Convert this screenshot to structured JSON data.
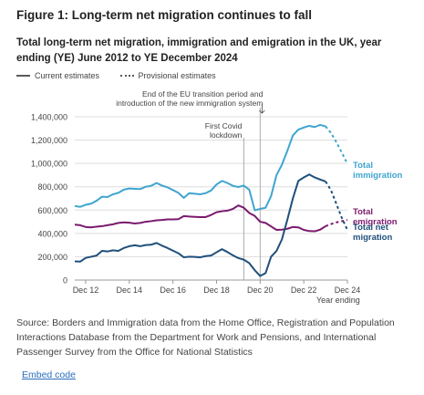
{
  "figure_title": "Figure 1: Long-term net migration continues to fall",
  "chart_title": "Total long-term net migration, immigration and emigration in the UK, year ending (YE) June 2012 to YE December 2024",
  "legend": {
    "current": "Current estimates",
    "provisional": "Provisional estimates"
  },
  "source": "Source: Borders and Immigration data from the Home Office, Registration and Population Interactions Database from the Department for Work and Pensions, and International Passenger Survey from the Office for National Statistics",
  "embed_link": "Embed code",
  "colors": {
    "immigration": "#3fa5d0",
    "emigration": "#7b1a6e",
    "net": "#1f4f7b",
    "grid": "#dddddd",
    "axis": "#999999"
  },
  "chart_data": {
    "type": "line",
    "x_unit": "quarter (year ending)",
    "x": [
      "Jun 12",
      "Sep 12",
      "Dec 12",
      "Mar 13",
      "Jun 13",
      "Sep 13",
      "Dec 13",
      "Mar 14",
      "Jun 14",
      "Sep 14",
      "Dec 14",
      "Mar 15",
      "Jun 15",
      "Sep 15",
      "Dec 15",
      "Mar 16",
      "Jun 16",
      "Sep 16",
      "Dec 16",
      "Mar 17",
      "Jun 17",
      "Sep 17",
      "Dec 17",
      "Mar 18",
      "Jun 18",
      "Sep 18",
      "Dec 18",
      "Mar 19",
      "Jun 19",
      "Sep 19",
      "Dec 19",
      "Mar 20",
      "Jun 20",
      "Sep 20",
      "Dec 20",
      "Mar 21",
      "Jun 21",
      "Sep 21",
      "Dec 21",
      "Mar 22",
      "Jun 22",
      "Sep 22",
      "Dec 22",
      "Mar 23",
      "Jun 23",
      "Sep 23",
      "Dec 23",
      "Mar 24",
      "Jun 24",
      "Sep 24",
      "Dec 24"
    ],
    "xticks": [
      "Dec 12",
      "Dec 14",
      "Dec 16",
      "Dec 18",
      "Dec 20",
      "Dec 22",
      "Dec 24"
    ],
    "x_axis_note": "Year ending",
    "ylim": [
      0,
      1400000
    ],
    "yticks": [
      "0",
      "200,000",
      "400,000",
      "600,000",
      "800,000",
      "1,000,000",
      "1,200,000",
      "1,400,000"
    ],
    "yticks_values": [
      0,
      200000,
      400000,
      600000,
      800000,
      1000000,
      1200000,
      1400000
    ],
    "provisional_from": "Dec 23",
    "series": [
      {
        "name": "Total immigration",
        "key": "immigration",
        "values": [
          635000,
          628000,
          645000,
          655000,
          680000,
          715000,
          712000,
          735000,
          748000,
          775000,
          785000,
          782000,
          780000,
          800000,
          808000,
          832000,
          810000,
          795000,
          772000,
          748000,
          705000,
          745000,
          740000,
          735000,
          745000,
          768000,
          820000,
          850000,
          832000,
          808000,
          798000,
          810000,
          775000,
          598000,
          610000,
          620000,
          720000,
          900000,
          990000,
          1110000,
          1240000,
          1290000,
          1308000,
          1322000,
          1312000,
          1330000,
          1318000,
          1260000,
          1180000,
          1090000,
          995000
        ]
      },
      {
        "name": "Total emigration",
        "key": "emigration",
        "values": [
          475000,
          470000,
          455000,
          452000,
          458000,
          462000,
          470000,
          478000,
          490000,
          495000,
          492000,
          485000,
          490000,
          500000,
          505000,
          512000,
          515000,
          520000,
          520000,
          522000,
          548000,
          545000,
          542000,
          540000,
          540000,
          558000,
          582000,
          590000,
          595000,
          610000,
          640000,
          620000,
          575000,
          550000,
          500000,
          490000,
          460000,
          430000,
          432000,
          440000,
          455000,
          452000,
          430000,
          420000,
          418000,
          432000,
          462000,
          480000,
          495000,
          505000,
          515000
        ]
      },
      {
        "name": "Total net migration",
        "key": "net",
        "values": [
          160000,
          158000,
          190000,
          200000,
          210000,
          250000,
          245000,
          255000,
          250000,
          275000,
          290000,
          298000,
          290000,
          300000,
          303000,
          318000,
          295000,
          275000,
          252000,
          230000,
          195000,
          200000,
          198000,
          195000,
          205000,
          210000,
          238000,
          265000,
          240000,
          212000,
          188000,
          175000,
          145000,
          85000,
          35000,
          60000,
          200000,
          250000,
          350000,
          520000,
          700000,
          850000,
          880000,
          905000,
          880000,
          862000,
          845000,
          770000,
          650000,
          530000,
          430000
        ]
      }
    ],
    "series_labels": {
      "immigration": [
        "Total",
        "immigration"
      ],
      "emigration": [
        "Total",
        "emigration"
      ],
      "net": [
        "Total net",
        "migration"
      ]
    },
    "annotations": [
      {
        "at": "Mar 20",
        "lines": [
          "First Covid",
          "lockdown"
        ]
      },
      {
        "at": "Dec 20",
        "lines": [
          "End of the EU transition period and",
          "introduction of the new immigration system"
        ]
      }
    ]
  }
}
